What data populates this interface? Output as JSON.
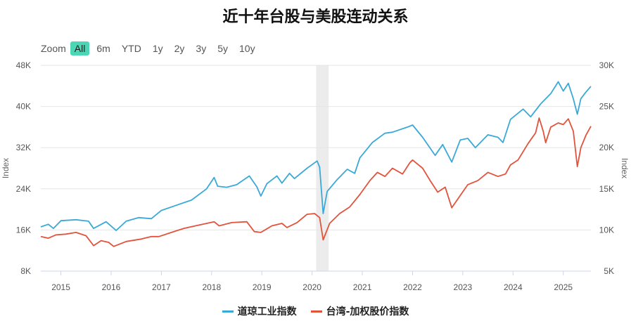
{
  "title": "近十年台股与美股连动关系",
  "zoom": {
    "label": "Zoom",
    "buttons": [
      "All",
      "6m",
      "YTD",
      "1y",
      "2y",
      "3y",
      "5y",
      "10y"
    ],
    "active": "All"
  },
  "chart_data": {
    "type": "line",
    "title": "近十年台股与美股连动关系",
    "x_ticks": [
      "2015",
      "2016",
      "2017",
      "2018",
      "2019",
      "2020",
      "2021",
      "2022",
      "2023",
      "2024",
      "2025"
    ],
    "x_range": [
      2014.6,
      2025.55
    ],
    "y_left": {
      "label": "Index",
      "ticks": [
        "8K",
        "16K",
        "24K",
        "32K",
        "40K",
        "48K"
      ],
      "range": [
        8000,
        48000
      ]
    },
    "y_right": {
      "label": "Index",
      "ticks": [
        "5K",
        "10K",
        "15K",
        "20K",
        "25K",
        "30K"
      ],
      "range": [
        5000,
        30000
      ]
    },
    "shaded_band": [
      2020.08,
      2020.33
    ],
    "grid": true,
    "legend_position": "bottom",
    "series": [
      {
        "name": "道琼工业指数",
        "axis": "left",
        "color": "#3aa9d8",
        "points": [
          [
            2014.6,
            16600
          ],
          [
            2014.75,
            17100
          ],
          [
            2014.85,
            16300
          ],
          [
            2015.0,
            17800
          ],
          [
            2015.3,
            18000
          ],
          [
            2015.55,
            17700
          ],
          [
            2015.65,
            16300
          ],
          [
            2015.9,
            17600
          ],
          [
            2016.1,
            15900
          ],
          [
            2016.3,
            17700
          ],
          [
            2016.55,
            18400
          ],
          [
            2016.8,
            18200
          ],
          [
            2016.9,
            19000
          ],
          [
            2017.0,
            19800
          ],
          [
            2017.3,
            20800
          ],
          [
            2017.6,
            21800
          ],
          [
            2017.9,
            24000
          ],
          [
            2018.05,
            26200
          ],
          [
            2018.12,
            24500
          ],
          [
            2018.3,
            24300
          ],
          [
            2018.5,
            24800
          ],
          [
            2018.75,
            26500
          ],
          [
            2018.9,
            24400
          ],
          [
            2018.98,
            22600
          ],
          [
            2019.1,
            25000
          ],
          [
            2019.3,
            26500
          ],
          [
            2019.4,
            25100
          ],
          [
            2019.55,
            27000
          ],
          [
            2019.65,
            26000
          ],
          [
            2019.9,
            28000
          ],
          [
            2020.1,
            29400
          ],
          [
            2020.15,
            28200
          ],
          [
            2020.22,
            19200
          ],
          [
            2020.3,
            23500
          ],
          [
            2020.5,
            25800
          ],
          [
            2020.7,
            27800
          ],
          [
            2020.85,
            27000
          ],
          [
            2020.95,
            30000
          ],
          [
            2021.2,
            33000
          ],
          [
            2021.45,
            34800
          ],
          [
            2021.6,
            35000
          ],
          [
            2021.9,
            36000
          ],
          [
            2022.0,
            36400
          ],
          [
            2022.2,
            34000
          ],
          [
            2022.45,
            30500
          ],
          [
            2022.6,
            32600
          ],
          [
            2022.78,
            29200
          ],
          [
            2022.95,
            33500
          ],
          [
            2023.1,
            33800
          ],
          [
            2023.25,
            32000
          ],
          [
            2023.5,
            34500
          ],
          [
            2023.7,
            34000
          ],
          [
            2023.8,
            33000
          ],
          [
            2023.95,
            37500
          ],
          [
            2024.2,
            39500
          ],
          [
            2024.35,
            38000
          ],
          [
            2024.55,
            40500
          ],
          [
            2024.75,
            42500
          ],
          [
            2024.9,
            44800
          ],
          [
            2025.0,
            43000
          ],
          [
            2025.1,
            44500
          ],
          [
            2025.2,
            41500
          ],
          [
            2025.28,
            38500
          ],
          [
            2025.35,
            41500
          ],
          [
            2025.45,
            42800
          ],
          [
            2025.55,
            43900
          ]
        ]
      },
      {
        "name": "台湾-加权股价指数",
        "axis": "right",
        "color": "#e2533c",
        "points": [
          [
            2014.6,
            9200
          ],
          [
            2014.75,
            9000
          ],
          [
            2014.9,
            9400
          ],
          [
            2015.1,
            9500
          ],
          [
            2015.3,
            9700
          ],
          [
            2015.5,
            9300
          ],
          [
            2015.65,
            8100
          ],
          [
            2015.8,
            8700
          ],
          [
            2015.95,
            8500
          ],
          [
            2016.05,
            8000
          ],
          [
            2016.3,
            8600
          ],
          [
            2016.6,
            8900
          ],
          [
            2016.8,
            9200
          ],
          [
            2016.95,
            9200
          ],
          [
            2017.2,
            9700
          ],
          [
            2017.45,
            10200
          ],
          [
            2017.75,
            10600
          ],
          [
            2018.05,
            11000
          ],
          [
            2018.15,
            10500
          ],
          [
            2018.4,
            10900
          ],
          [
            2018.7,
            11000
          ],
          [
            2018.85,
            9800
          ],
          [
            2018.98,
            9700
          ],
          [
            2019.2,
            10500
          ],
          [
            2019.4,
            10800
          ],
          [
            2019.5,
            10300
          ],
          [
            2019.7,
            10900
          ],
          [
            2019.9,
            11900
          ],
          [
            2020.05,
            12000
          ],
          [
            2020.15,
            11500
          ],
          [
            2020.22,
            8800
          ],
          [
            2020.35,
            10800
          ],
          [
            2020.55,
            12000
          ],
          [
            2020.75,
            12800
          ],
          [
            2020.95,
            14300
          ],
          [
            2021.15,
            16000
          ],
          [
            2021.3,
            17000
          ],
          [
            2021.45,
            16500
          ],
          [
            2021.6,
            17500
          ],
          [
            2021.8,
            16800
          ],
          [
            2021.95,
            18200
          ],
          [
            2022.0,
            18500
          ],
          [
            2022.2,
            17500
          ],
          [
            2022.35,
            16000
          ],
          [
            2022.5,
            14600
          ],
          [
            2022.65,
            15200
          ],
          [
            2022.78,
            12700
          ],
          [
            2022.95,
            14200
          ],
          [
            2023.1,
            15500
          ],
          [
            2023.3,
            16000
          ],
          [
            2023.5,
            17000
          ],
          [
            2023.7,
            16500
          ],
          [
            2023.85,
            16800
          ],
          [
            2023.95,
            17900
          ],
          [
            2024.1,
            18500
          ],
          [
            2024.3,
            20500
          ],
          [
            2024.45,
            21800
          ],
          [
            2024.52,
            23600
          ],
          [
            2024.6,
            22000
          ],
          [
            2024.65,
            20600
          ],
          [
            2024.75,
            22500
          ],
          [
            2024.9,
            23000
          ],
          [
            2025.0,
            22800
          ],
          [
            2025.1,
            23500
          ],
          [
            2025.2,
            22000
          ],
          [
            2025.28,
            17700
          ],
          [
            2025.35,
            20000
          ],
          [
            2025.45,
            21500
          ],
          [
            2025.55,
            22600
          ]
        ]
      }
    ]
  }
}
